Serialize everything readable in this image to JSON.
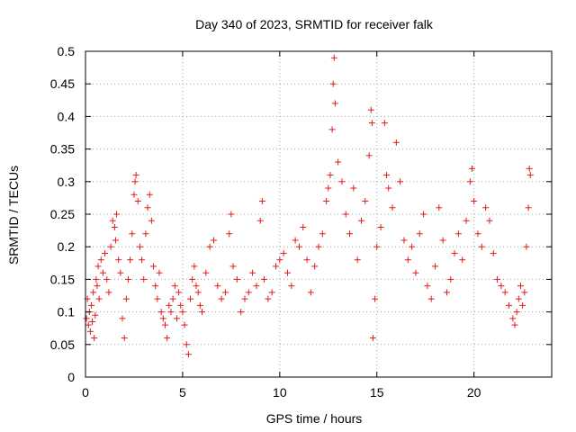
{
  "chart_data": {
    "type": "scatter",
    "title": "Day 340 of 2023, SRMTID for receiver falk",
    "xlabel": "GPS time / hours",
    "ylabel": "SRMTID / TECUs",
    "xlim": [
      0,
      24
    ],
    "ylim": [
      0,
      0.5
    ],
    "xticks": [
      0,
      5,
      10,
      15,
      20
    ],
    "yticks": [
      0,
      0.05,
      0.1,
      0.15,
      0.2,
      0.25,
      0.3,
      0.35,
      0.4,
      0.45,
      0.5
    ],
    "grid": true,
    "marker": "plus",
    "color": "#e41a1c",
    "series": [
      {
        "points": [
          [
            0.05,
            0.09
          ],
          [
            0.1,
            0.12
          ],
          [
            0.15,
            0.08
          ],
          [
            0.2,
            0.1
          ],
          [
            0.25,
            0.07
          ],
          [
            0.3,
            0.11
          ],
          [
            0.35,
            0.085
          ],
          [
            0.4,
            0.13
          ],
          [
            0.45,
            0.06
          ],
          [
            0.5,
            0.095
          ],
          [
            0.55,
            0.15
          ],
          [
            0.6,
            0.14
          ],
          [
            0.65,
            0.17
          ],
          [
            0.7,
            0.12
          ],
          [
            0.8,
            0.18
          ],
          [
            0.9,
            0.16
          ],
          [
            1.0,
            0.19
          ],
          [
            1.1,
            0.15
          ],
          [
            1.2,
            0.13
          ],
          [
            1.3,
            0.2
          ],
          [
            1.4,
            0.24
          ],
          [
            1.5,
            0.23
          ],
          [
            1.55,
            0.21
          ],
          [
            1.6,
            0.25
          ],
          [
            1.7,
            0.18
          ],
          [
            1.8,
            0.16
          ],
          [
            1.9,
            0.09
          ],
          [
            2.0,
            0.06
          ],
          [
            2.1,
            0.12
          ],
          [
            2.2,
            0.15
          ],
          [
            2.3,
            0.18
          ],
          [
            2.4,
            0.22
          ],
          [
            2.5,
            0.28
          ],
          [
            2.55,
            0.3
          ],
          [
            2.6,
            0.31
          ],
          [
            2.7,
            0.27
          ],
          [
            2.8,
            0.2
          ],
          [
            2.9,
            0.18
          ],
          [
            3.0,
            0.15
          ],
          [
            3.1,
            0.22
          ],
          [
            3.2,
            0.26
          ],
          [
            3.3,
            0.28
          ],
          [
            3.4,
            0.24
          ],
          [
            3.5,
            0.17
          ],
          [
            3.6,
            0.14
          ],
          [
            3.7,
            0.12
          ],
          [
            3.8,
            0.16
          ],
          [
            3.9,
            0.1
          ],
          [
            4.0,
            0.09
          ],
          [
            4.1,
            0.08
          ],
          [
            4.2,
            0.06
          ],
          [
            4.3,
            0.11
          ],
          [
            4.4,
            0.1
          ],
          [
            4.5,
            0.12
          ],
          [
            4.6,
            0.14
          ],
          [
            4.7,
            0.09
          ],
          [
            4.8,
            0.13
          ],
          [
            4.9,
            0.11
          ],
          [
            5.0,
            0.1
          ],
          [
            5.1,
            0.08
          ],
          [
            5.2,
            0.05
          ],
          [
            5.3,
            0.035
          ],
          [
            5.4,
            0.12
          ],
          [
            5.5,
            0.15
          ],
          [
            5.6,
            0.17
          ],
          [
            5.7,
            0.14
          ],
          [
            5.8,
            0.13
          ],
          [
            5.9,
            0.11
          ],
          [
            6.0,
            0.1
          ],
          [
            6.2,
            0.16
          ],
          [
            6.4,
            0.2
          ],
          [
            6.6,
            0.21
          ],
          [
            6.8,
            0.14
          ],
          [
            7.0,
            0.12
          ],
          [
            7.2,
            0.13
          ],
          [
            7.4,
            0.22
          ],
          [
            7.5,
            0.25
          ],
          [
            7.6,
            0.17
          ],
          [
            7.8,
            0.15
          ],
          [
            8.0,
            0.1
          ],
          [
            8.2,
            0.12
          ],
          [
            8.4,
            0.13
          ],
          [
            8.6,
            0.16
          ],
          [
            8.8,
            0.14
          ],
          [
            9.0,
            0.24
          ],
          [
            9.1,
            0.27
          ],
          [
            9.2,
            0.15
          ],
          [
            9.4,
            0.12
          ],
          [
            9.6,
            0.13
          ],
          [
            9.8,
            0.17
          ],
          [
            10.0,
            0.18
          ],
          [
            10.2,
            0.19
          ],
          [
            10.4,
            0.16
          ],
          [
            10.6,
            0.14
          ],
          [
            10.8,
            0.21
          ],
          [
            11.0,
            0.2
          ],
          [
            11.2,
            0.23
          ],
          [
            11.4,
            0.18
          ],
          [
            11.6,
            0.13
          ],
          [
            11.8,
            0.17
          ],
          [
            12.0,
            0.2
          ],
          [
            12.2,
            0.22
          ],
          [
            12.4,
            0.27
          ],
          [
            12.5,
            0.29
          ],
          [
            12.6,
            0.31
          ],
          [
            12.7,
            0.38
          ],
          [
            12.75,
            0.45
          ],
          [
            12.8,
            0.49
          ],
          [
            12.85,
            0.42
          ],
          [
            13.0,
            0.33
          ],
          [
            13.2,
            0.3
          ],
          [
            13.4,
            0.25
          ],
          [
            13.6,
            0.22
          ],
          [
            13.8,
            0.29
          ],
          [
            14.0,
            0.18
          ],
          [
            14.2,
            0.24
          ],
          [
            14.4,
            0.27
          ],
          [
            14.6,
            0.34
          ],
          [
            14.7,
            0.41
          ],
          [
            14.75,
            0.39
          ],
          [
            14.8,
            0.06
          ],
          [
            14.9,
            0.12
          ],
          [
            15.0,
            0.2
          ],
          [
            15.2,
            0.23
          ],
          [
            15.4,
            0.39
          ],
          [
            15.5,
            0.31
          ],
          [
            15.6,
            0.29
          ],
          [
            15.8,
            0.26
          ],
          [
            16.0,
            0.36
          ],
          [
            16.2,
            0.3
          ],
          [
            16.4,
            0.21
          ],
          [
            16.6,
            0.18
          ],
          [
            16.8,
            0.2
          ],
          [
            17.0,
            0.16
          ],
          [
            17.2,
            0.22
          ],
          [
            17.4,
            0.25
          ],
          [
            17.6,
            0.14
          ],
          [
            17.8,
            0.12
          ],
          [
            18.0,
            0.17
          ],
          [
            18.2,
            0.26
          ],
          [
            18.4,
            0.21
          ],
          [
            18.6,
            0.13
          ],
          [
            18.8,
            0.15
          ],
          [
            19.0,
            0.19
          ],
          [
            19.2,
            0.22
          ],
          [
            19.4,
            0.18
          ],
          [
            19.6,
            0.24
          ],
          [
            19.8,
            0.3
          ],
          [
            19.9,
            0.32
          ],
          [
            20.0,
            0.27
          ],
          [
            20.2,
            0.22
          ],
          [
            20.4,
            0.2
          ],
          [
            20.6,
            0.26
          ],
          [
            20.8,
            0.24
          ],
          [
            21.0,
            0.19
          ],
          [
            21.2,
            0.15
          ],
          [
            21.4,
            0.14
          ],
          [
            21.6,
            0.13
          ],
          [
            21.8,
            0.11
          ],
          [
            22.0,
            0.09
          ],
          [
            22.1,
            0.08
          ],
          [
            22.2,
            0.1
          ],
          [
            22.3,
            0.12
          ],
          [
            22.4,
            0.14
          ],
          [
            22.5,
            0.11
          ],
          [
            22.6,
            0.13
          ],
          [
            22.7,
            0.2
          ],
          [
            22.8,
            0.26
          ],
          [
            22.85,
            0.32
          ],
          [
            22.9,
            0.31
          ]
        ]
      }
    ]
  }
}
